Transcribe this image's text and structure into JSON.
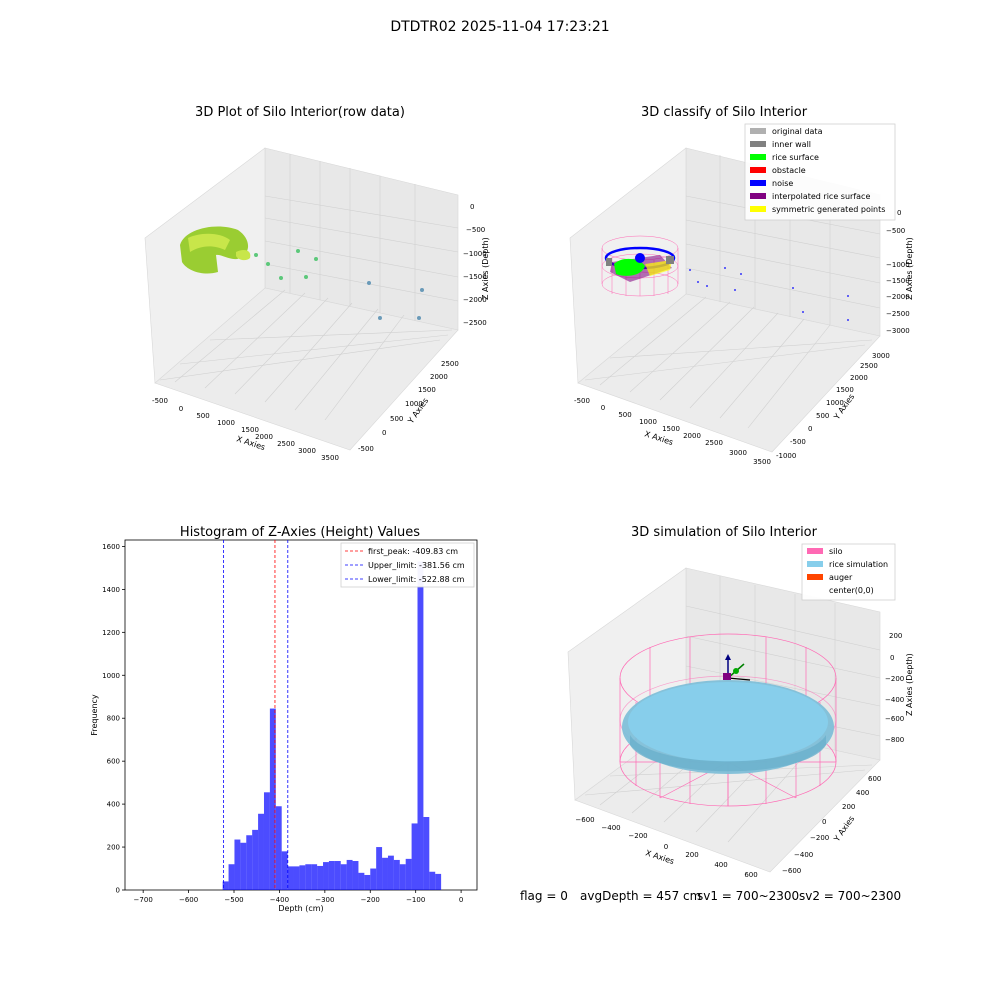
{
  "suptitle": "DTDTR02 2025-11-04 17:23:21",
  "footer": {
    "flag": "flag = 0",
    "avg_depth": "avgDepth = 457 cm",
    "sv1": "sv1 = 700~2300",
    "sv2": "sv2 = 700~2300"
  },
  "chart_data": [
    {
      "type": "scatter",
      "title": "3D Plot of Silo Interior(row data)",
      "xlabel": "X Axies",
      "ylabel": "Y Axies",
      "zlabel": "Z Axies (Depth)",
      "x_ticks": [
        "-500",
        "0",
        "500",
        "1000",
        "1500",
        "2000",
        "2500",
        "3000",
        "3500"
      ],
      "y_ticks": [
        "-500",
        "0",
        "500",
        "1000",
        "1500",
        "2000",
        "2500"
      ],
      "z_ticks": [
        "0",
        "−500",
        "−1000",
        "−1500",
        "−2000",
        "−2500"
      ],
      "grid": true,
      "colors": {
        "cluster": "#9acd32",
        "cluster_light": "#c8e64a",
        "outlier_green": "#5cc87a",
        "outlier_blue": "#6a9ab8"
      }
    },
    {
      "type": "scatter",
      "title": "3D classify of Silo Interior",
      "xlabel": "X Axies",
      "ylabel": "Y Axies",
      "zlabel": "Z Axies (Depth)",
      "x_ticks": [
        "-500",
        "0",
        "500",
        "1000",
        "1500",
        "2000",
        "2500",
        "3000",
        "3500"
      ],
      "y_ticks": [
        "-1000",
        "-500",
        "0",
        "500",
        "1000",
        "1500",
        "2000",
        "2500",
        "3000"
      ],
      "z_ticks": [
        "0",
        "−500",
        "−1000",
        "−1500",
        "−2000",
        "−2500",
        "−3000"
      ],
      "grid": true,
      "legend_position": "top-right",
      "legend": [
        {
          "label": "original data",
          "color": "#b0b0b0"
        },
        {
          "label": "inner wall",
          "color": "#808080"
        },
        {
          "label": "rice surface",
          "color": "#00ff00"
        },
        {
          "label": "obstacle",
          "color": "#ff0000"
        },
        {
          "label": "noise",
          "color": "#0000ff"
        },
        {
          "label": "interpolated rice surface",
          "color": "#800080"
        },
        {
          "label": "symmetric generated points",
          "color": "#ffff00"
        }
      ]
    },
    {
      "type": "bar",
      "title": "Histogram of Z-Axies (Height) Values",
      "xlabel": "Depth (cm)",
      "ylabel": "Frequency",
      "xlim": [
        -740,
        35
      ],
      "ylim": [
        0,
        1630
      ],
      "x_ticks": [
        "−700",
        "−600",
        "−500",
        "−400",
        "−300",
        "−200",
        "−100",
        "0"
      ],
      "x_tick_values": [
        -700,
        -600,
        -500,
        -400,
        -300,
        -200,
        -100,
        0
      ],
      "y_ticks": [
        "0",
        "200",
        "400",
        "600",
        "800",
        "1000",
        "1200",
        "1400",
        "1600"
      ],
      "y_tick_values": [
        0,
        200,
        400,
        600,
        800,
        1000,
        1200,
        1400,
        1600
      ],
      "bar_color": "#0000ff",
      "bin_width": 13,
      "bin_starts": [
        -525,
        -512,
        -499,
        -486,
        -473,
        -460,
        -447,
        -434,
        -421,
        -408,
        -395,
        -382,
        -369,
        -356,
        -343,
        -330,
        -317,
        -304,
        -291,
        -278,
        -265,
        -252,
        -239,
        -226,
        -213,
        -200,
        -187,
        -174,
        -161,
        -148,
        -135,
        -122,
        -109,
        -96,
        -83,
        -70,
        -57,
        -44,
        -31,
        -18
      ],
      "values": [
        40,
        120,
        235,
        220,
        255,
        280,
        355,
        455,
        845,
        390,
        180,
        110,
        110,
        115,
        120,
        120,
        112,
        130,
        135,
        135,
        120,
        140,
        135,
        80,
        70,
        100,
        200,
        150,
        160,
        140,
        120,
        145,
        310,
        1530,
        340,
        85,
        75,
        0,
        0,
        0
      ],
      "lines": [
        {
          "label": "first_peak: -409.83 cm",
          "x": -409.83,
          "color": "#ff0000"
        },
        {
          "label": "Upper_limit: -381.56 cm",
          "x": -381.56,
          "color": "#0000ff"
        },
        {
          "label": "Lower_limit: -522.88 cm",
          "x": -522.88,
          "color": "#0000ff"
        }
      ],
      "legend_position": "top-right"
    },
    {
      "type": "surface",
      "title": "3D simulation of Silo Interior",
      "xlabel": "X Axies",
      "ylabel": "Y Axies",
      "zlabel": "Z Axies (Depth)",
      "x_ticks": [
        "−600",
        "−400",
        "−200",
        "0",
        "200",
        "400",
        "600"
      ],
      "y_ticks": [
        "−600",
        "−400",
        "−200",
        "0",
        "200",
        "400",
        "600"
      ],
      "z_ticks": [
        "200",
        "0",
        "−200",
        "−400",
        "−600",
        "−800"
      ],
      "grid": true,
      "legend_position": "top-right",
      "legend": [
        {
          "label": "silo",
          "color": "#ff69b4"
        },
        {
          "label": "rice simulation",
          "color": "#87ceeb"
        },
        {
          "label": "auger",
          "color": "#ff4500"
        },
        {
          "label": "center(0,0)",
          "color": ""
        }
      ]
    }
  ]
}
